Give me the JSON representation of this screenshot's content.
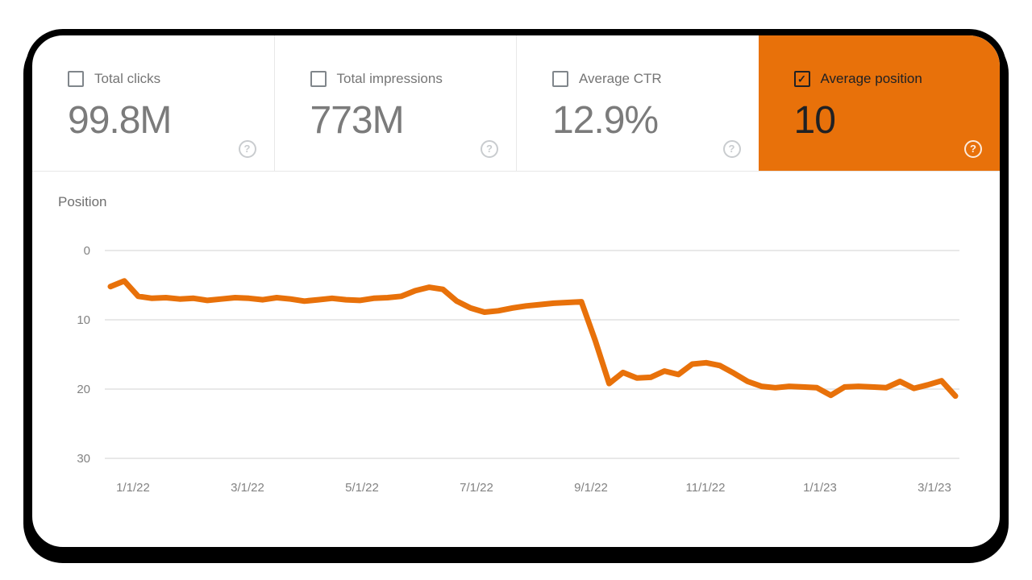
{
  "icons": {
    "help_glyph": "?",
    "check_glyph": "✓"
  },
  "colors": {
    "accent_orange": "#e8710a",
    "card_text_gray": "#757575",
    "dark_text": "#202124",
    "grid_line": "#e8e8e8",
    "axis_label": "#828282",
    "divider": "#e8e8e8",
    "window_border": "#000000",
    "background": "#ffffff"
  },
  "metric_cards": [
    {
      "id": "total-clicks",
      "label": "Total clicks",
      "value": "99.8M",
      "checked": false
    },
    {
      "id": "total-impressions",
      "label": "Total impressions",
      "value": "773M",
      "checked": false
    },
    {
      "id": "average-ctr",
      "label": "Average CTR",
      "value": "12.9%",
      "checked": false
    },
    {
      "id": "average-position",
      "label": "Average position",
      "value": "10",
      "checked": true
    }
  ],
  "chart_data": {
    "type": "line",
    "title": "Position",
    "ylabel": "Position",
    "xlabel": "",
    "y_axis": {
      "ticks": [
        0,
        10,
        20,
        30
      ],
      "min": 0,
      "max": 30,
      "inverted": true
    },
    "x_axis": {
      "tick_labels": [
        "1/1/22",
        "3/1/22",
        "5/1/22",
        "7/1/22",
        "9/1/22",
        "11/1/22",
        "1/1/23",
        "3/1/23"
      ],
      "unit": "weekly"
    },
    "grid": "horizontal",
    "legend": "none",
    "series": [
      {
        "name": "Average position",
        "color": "#e8710a",
        "values": [
          5.2,
          4.4,
          6.6,
          6.9,
          6.8,
          7.0,
          6.9,
          7.2,
          7.0,
          6.8,
          6.9,
          7.1,
          6.8,
          7.0,
          7.3,
          7.1,
          6.9,
          7.1,
          7.2,
          6.9,
          6.8,
          6.6,
          5.8,
          5.3,
          5.6,
          7.3,
          8.3,
          8.9,
          8.7,
          8.3,
          8.0,
          7.8,
          7.6,
          7.5,
          7.4,
          13.0,
          19.2,
          17.6,
          18.4,
          18.3,
          17.4,
          17.9,
          16.4,
          16.2,
          16.6,
          17.7,
          18.9,
          19.6,
          19.8,
          19.6,
          19.7,
          19.8,
          20.9,
          19.7,
          19.6,
          19.7,
          19.8,
          18.9,
          19.9,
          19.4,
          18.8,
          21.0
        ]
      }
    ]
  }
}
